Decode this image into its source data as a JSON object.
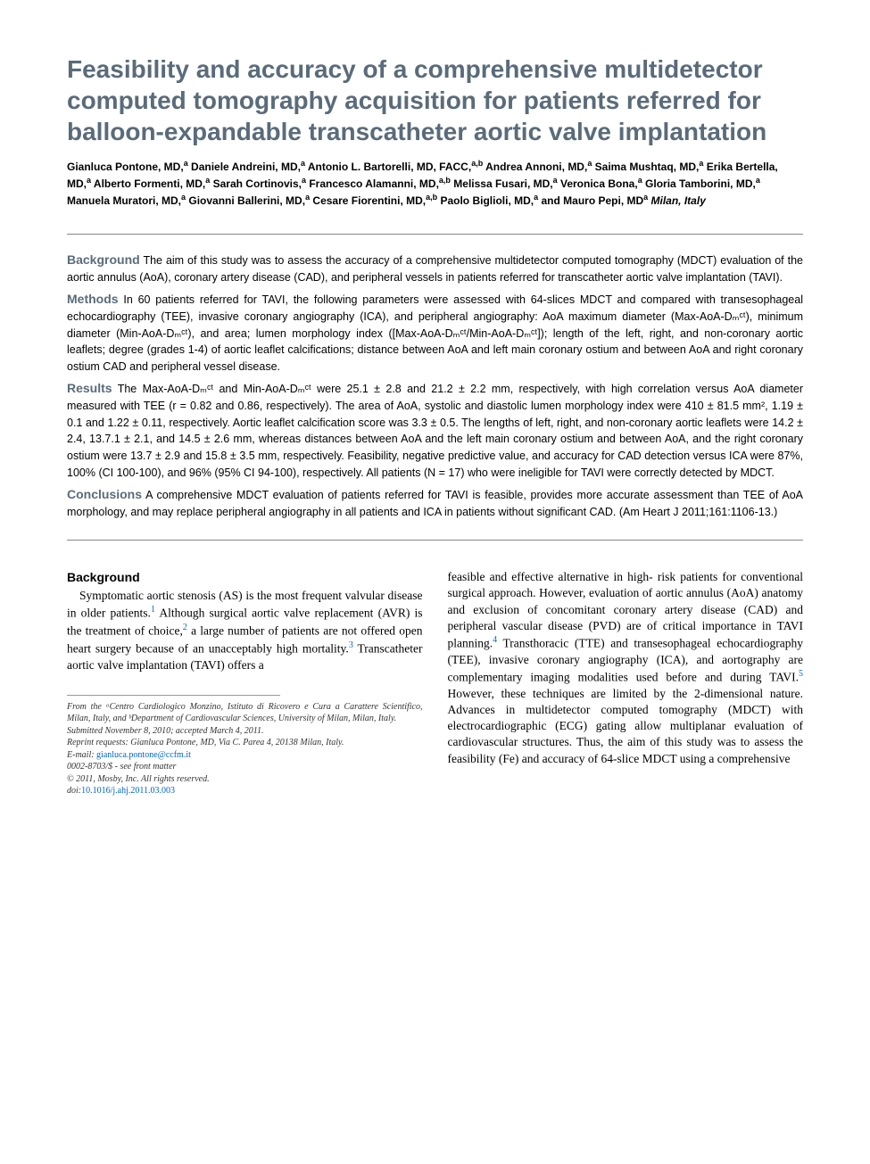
{
  "title": "Feasibility and accuracy of a comprehensive multidetector computed tomography acquisition for patients referred for balloon-expandable transcatheter aortic valve implantation",
  "authors_html": "Gianluca Pontone, MD,<sup>a</sup> Daniele Andreini, MD,<sup>a</sup> Antonio L. Bartorelli, MD, FACC,<sup>a,b</sup> Andrea Annoni, MD,<sup>a</sup> Saima Mushtaq, MD,<sup>a</sup> Erika Bertella, MD,<sup>a</sup> Alberto Formenti, MD,<sup>a</sup> Sarah Cortinovis,<sup>a</sup> Francesco Alamanni, MD,<sup>a,b</sup> Melissa Fusari, MD,<sup>a</sup> Veronica Bona,<sup>a</sup> Gloria Tamborini, MD,<sup>a</sup> Manuela Muratori, MD,<sup>a</sup> Giovanni Ballerini, MD,<sup>a</sup> Cesare Fiorentini, MD,<sup>a,b</sup> Paolo Biglioli, MD,<sup>a</sup> and Mauro Pepi, MD<sup>a</sup> <span class=\"affil\">Milan, Italy</span>",
  "abstract": {
    "background": {
      "label": "Background",
      "text": "The aim of this study was to assess the accuracy of a comprehensive multidetector computed tomography (MDCT) evaluation of the aortic annulus (AoA), coronary artery disease (CAD), and peripheral vessels in patients referred for transcatheter aortic valve implantation (TAVI)."
    },
    "methods": {
      "label": "Methods",
      "text": "In 60 patients referred for TAVI, the following parameters were assessed with 64-slices MDCT and compared with transesophageal echocardiography (TEE), invasive coronary angiography (ICA), and peripheral angiography: AoA maximum diameter (Max-AoA-Dₘᶜᵗ), minimum diameter (Min-AoA-Dₘᶜᵗ), and area; lumen morphology index ([Max-AoA-Dₘᶜᵗ/Min-AoA-Dₘᶜᵗ]); length of the left, right, and non-coronary aortic leaflets; degree (grades 1-4) of aortic leaflet calcifications; distance between AoA and left main coronary ostium and between AoA and right coronary ostium CAD and peripheral vessel disease."
    },
    "results": {
      "label": "Results",
      "text": "The Max-AoA-Dₘᶜᵗ and Min-AoA-Dₘᶜᵗ were 25.1 ± 2.8 and 21.2 ± 2.2 mm, respectively, with high correlation versus AoA diameter measured with TEE (r = 0.82 and 0.86, respectively). The area of AoA, systolic and diastolic lumen morphology index were 410 ± 81.5 mm², 1.19 ± 0.1 and 1.22 ± 0.11, respectively. Aortic leaflet calcification score was 3.3 ± 0.5. The lengths of left, right, and non-coronary aortic leaflets were 14.2 ± 2.4, 13.7.1 ± 2.1, and 14.5 ± 2.6 mm, whereas distances between AoA and the left main coronary ostium and between AoA, and the right coronary ostium were 13.7 ± 2.9 and 15.8 ± 3.5 mm, respectively. Feasibility, negative predictive value, and accuracy for CAD detection versus ICA were 87%, 100% (CI 100-100), and 96% (95% CI 94-100), respectively. All patients (N = 17) who were ineligible for TAVI were correctly detected by MDCT."
    },
    "conclusions": {
      "label": "Conclusions",
      "text": "A comprehensive MDCT evaluation of patients referred for TAVI is feasible, provides more accurate assessment than TEE of AoA morphology, and may replace peripheral angiography in all patients and ICA in patients without significant CAD. (Am Heart J 2011;161:1106-13.)"
    }
  },
  "body": {
    "heading": "Background",
    "left_para_html": "Symptomatic aortic stenosis (AS) is the most frequent valvular disease in older patients.<span class=\"ref-sup\">1</span> Although surgical aortic valve replacement (AVR) is the treatment of choice,<span class=\"ref-sup\">2</span> a large number of patients are not offered open heart surgery because of an unacceptably high mortality.<span class=\"ref-sup\">3</span> Transcatheter aortic valve implantation (TAVI) offers a",
    "right_para_html": "feasible and effective alternative in high- risk patients for conventional surgical approach. However, evaluation of aortic annulus (AoA) anatomy and exclusion of concomitant coronary artery disease (CAD) and peripheral vascular disease (PVD) are of critical importance in TAVI planning.<span class=\"ref-sup\">4</span> Transthoracic (TTE) and transesophageal echocardiography (TEE), invasive coronary angiography (ICA), and aortography are complementary imaging modalities used before and during TAVI.<span class=\"ref-sup\">5</span> However, these techniques are limited by the 2-dimensional nature. Advances in multidetector computed tomography (MDCT) with electrocardiographic (ECG) gating allow multiplanar evaluation of cardiovascular structures. Thus, the aim of this study was to assess the feasibility (Fe) and accuracy of 64-slice MDCT using a comprehensive"
  },
  "footnotes": {
    "affiliation": "From the ᵃCentro Cardiologico Monzino, Istituto di Ricovero e Cura a Carattere Scientifico, Milan, Italy, and ᵇDepartment of Cardiovascular Sciences, University of Milan, Milan, Italy.",
    "submitted": "Submitted November 8, 2010; accepted March 4, 2011.",
    "reprint": "Reprint requests: Gianluca Pontone, MD, Via C. Parea 4, 20138 Milan, Italy.",
    "email_label": "E-mail:",
    "email": "gianluca.pontone@ccfm.it",
    "issn": "0002-8703/$ - see front matter",
    "copyright": "© 2011, Mosby, Inc. All rights reserved.",
    "doi_label": "doi:",
    "doi": "10.1016/j.ahj.2011.03.003"
  },
  "colors": {
    "heading_color": "#5a6b7a",
    "link_color": "#0066cc",
    "rule_color": "#888888",
    "text_color": "#000000",
    "background": "#ffffff"
  },
  "typography": {
    "title_fontsize": 28,
    "title_weight": "bold",
    "authors_fontsize": 12,
    "abstract_fontsize": 12.5,
    "abstract_heading_fontsize": 14,
    "body_fontsize": 13.5,
    "footnote_fontsize": 10
  }
}
